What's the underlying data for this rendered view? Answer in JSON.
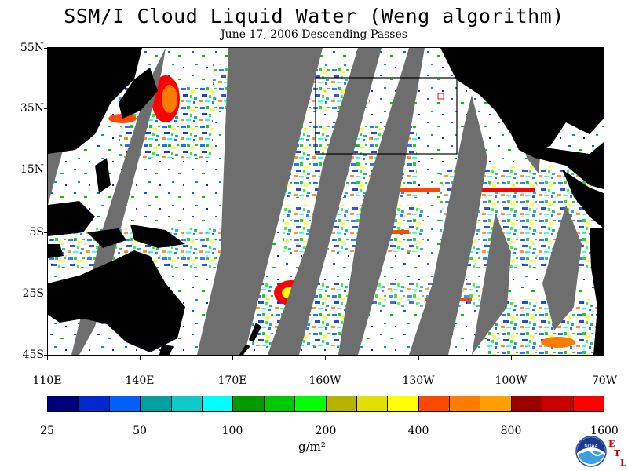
{
  "title": "SSM/I Cloud Liquid Water (Weng algorithm)",
  "subtitle": "June 17, 2006  Descending Passes",
  "lat_labels": [
    "55N",
    "35N",
    "15N",
    "5S",
    "25S",
    "45S"
  ],
  "lon_labels": [
    "110E",
    "140E",
    "170E",
    "160W",
    "130W",
    "100W",
    "70W"
  ],
  "colorbar": {
    "colors": [
      "#00007a",
      "#0028d0",
      "#0060ff",
      "#00a0a0",
      "#10c8c8",
      "#00ffff",
      "#009a00",
      "#00c800",
      "#00ff00",
      "#b4b400",
      "#e0e000",
      "#ffff00",
      "#ff4800",
      "#ff7c00",
      "#ffa000",
      "#9a0000",
      "#c80000",
      "#ff0000"
    ],
    "labels": [
      "25",
      "50",
      "100",
      "200",
      "400",
      "800",
      "1600"
    ],
    "unit": "g/m²"
  },
  "logo": {
    "name": "NOAA",
    "letters": [
      "E",
      "T",
      "L"
    ]
  },
  "colors": {
    "land": "#000000",
    "no_data": "#6e6e6e",
    "ocean_clear": "#ffffff",
    "box": "#000000",
    "marker": "#ff0000"
  }
}
